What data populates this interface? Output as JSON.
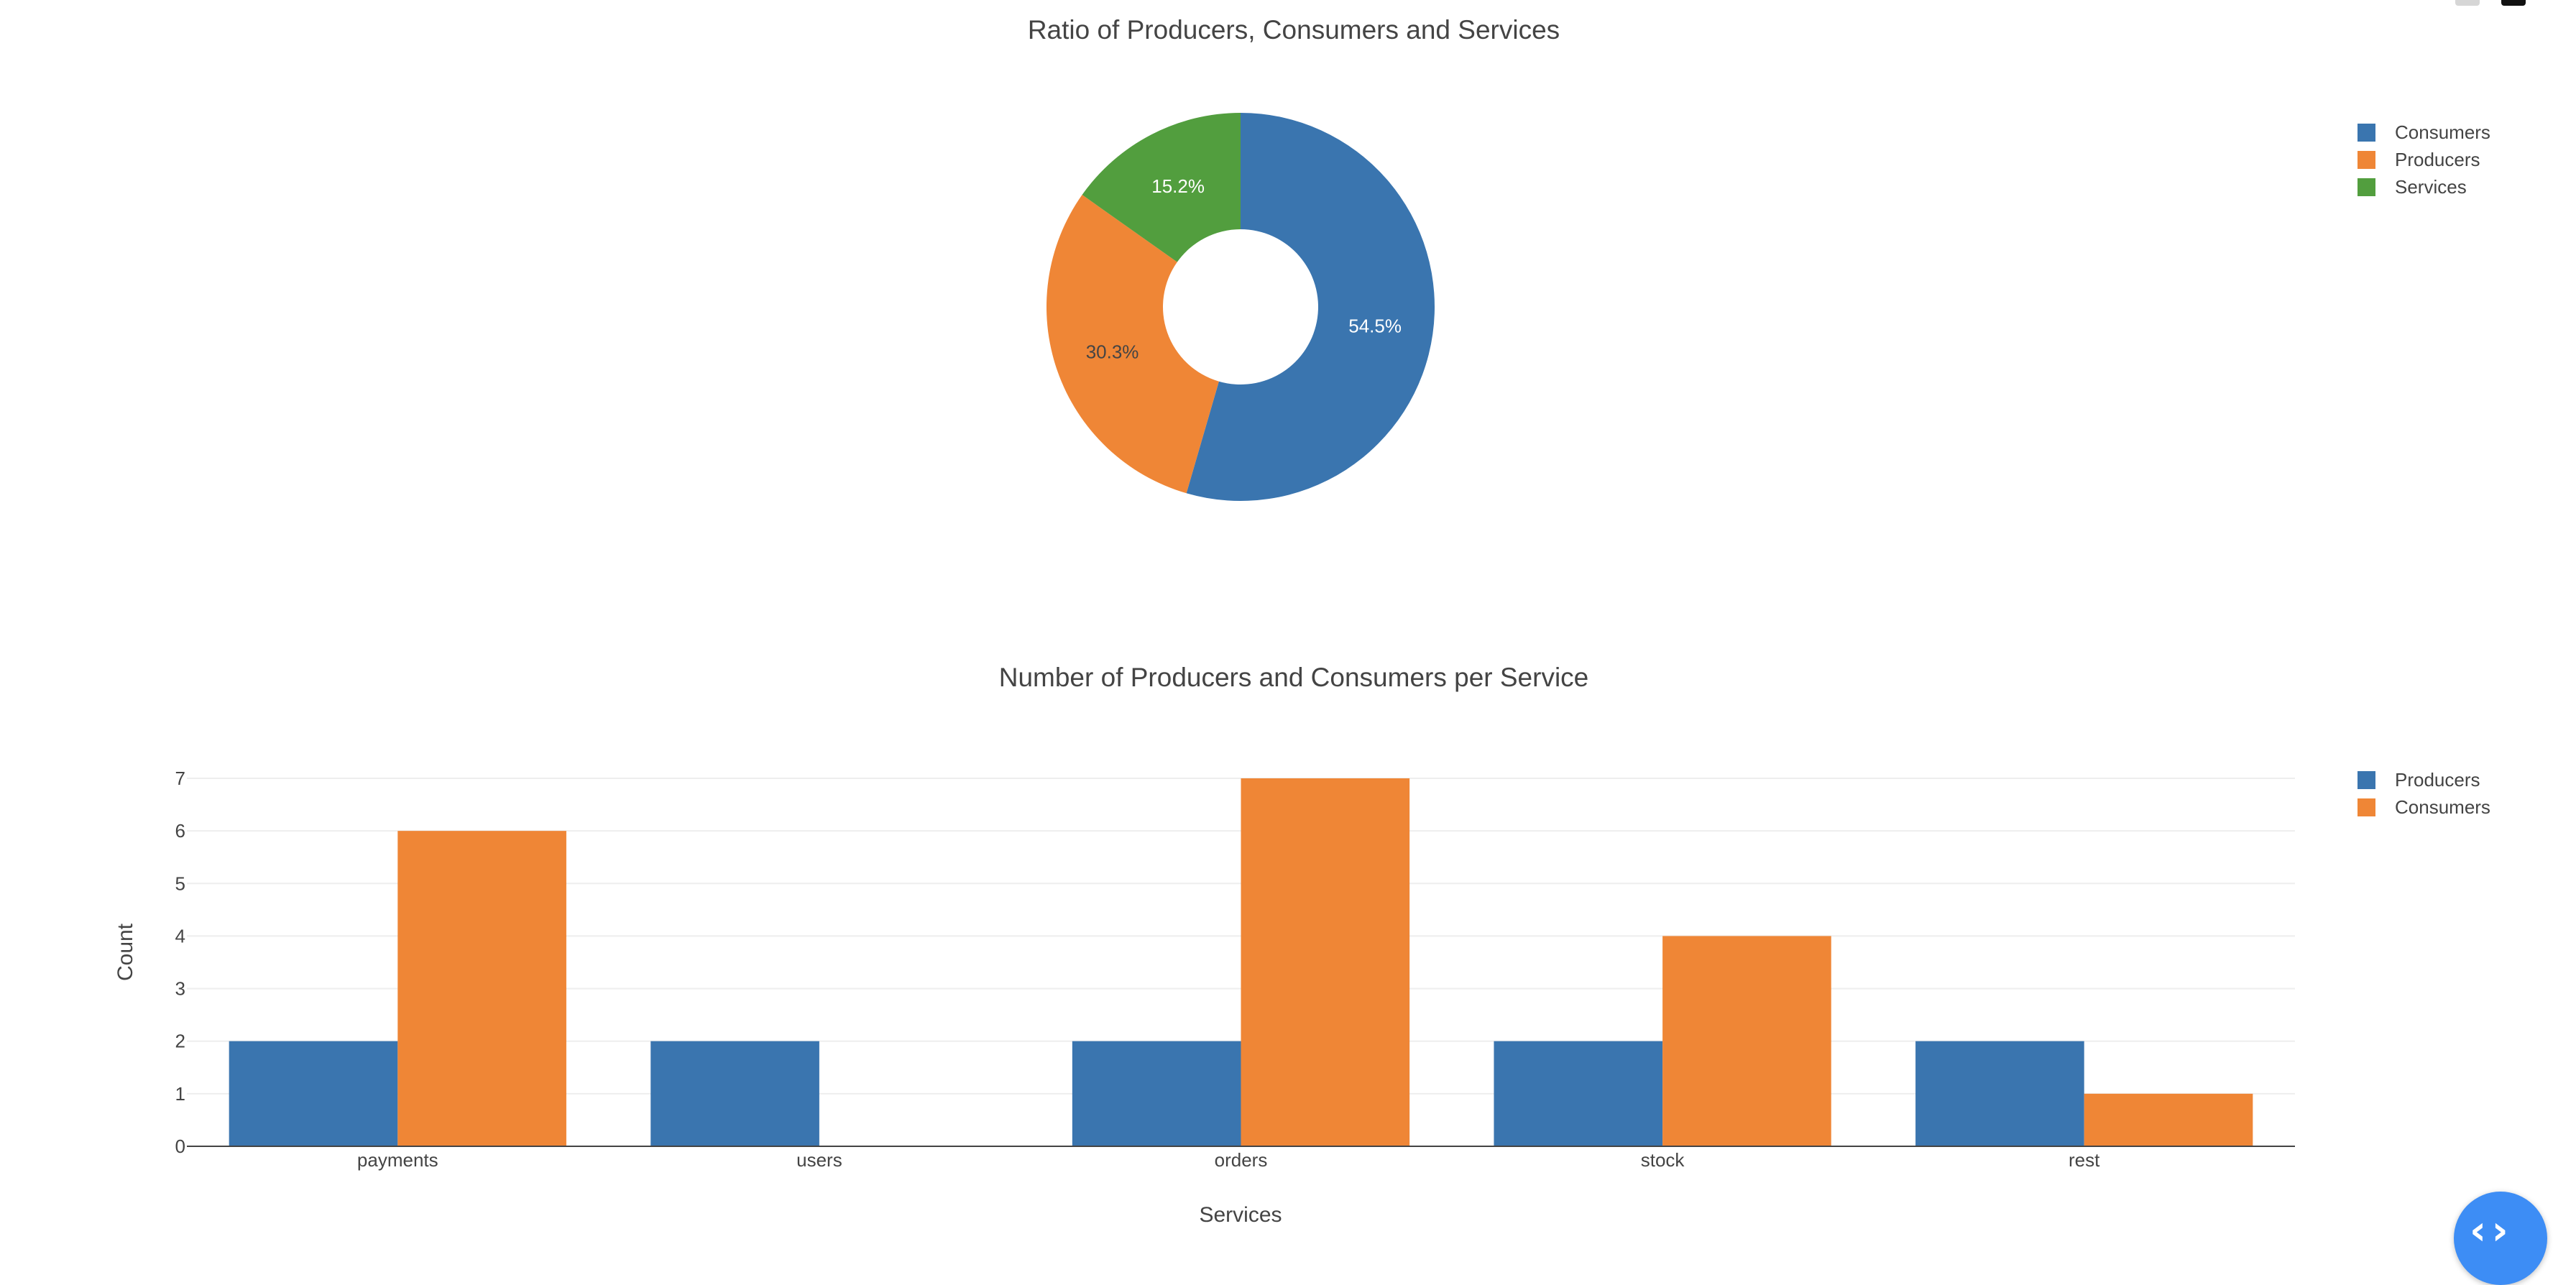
{
  "toolbar": {
    "icons": [
      "zoom-icon",
      "bar-chart-icon"
    ],
    "colors": [
      "#d6d6d6",
      "#111111"
    ]
  },
  "fab": {
    "glyph": "‹ ›",
    "icon": "code-icon",
    "color": "#3d8df5"
  },
  "chart_data": [
    {
      "type": "pie",
      "title": "Ratio of Producers, Consumers and Services",
      "hole": true,
      "labels": [
        "Consumers",
        "Producers",
        "Services"
      ],
      "values": [
        54.5,
        30.3,
        15.2
      ],
      "value_labels": [
        "54.5%",
        "30.3%",
        "15.2%"
      ],
      "colors": [
        "#3a75af",
        "#ef8636",
        "#529e3e"
      ],
      "legend": {
        "position": "top-right",
        "entries": [
          "Consumers",
          "Producers",
          "Services"
        ]
      }
    },
    {
      "type": "bar",
      "title": "Number of Producers and Consumers per Service",
      "categories": [
        "payments",
        "users",
        "orders",
        "stock",
        "rest"
      ],
      "series": [
        {
          "name": "Producers",
          "values": [
            2,
            2,
            2,
            2,
            2
          ],
          "color": "#3a75af"
        },
        {
          "name": "Consumers",
          "values": [
            6,
            0,
            7,
            4,
            1
          ],
          "color": "#ef8636"
        }
      ],
      "xlabel": "Services",
      "ylabel": "Count",
      "ylim": [
        0,
        7
      ],
      "yticks": [
        "0",
        "1",
        "2",
        "3",
        "4",
        "5",
        "6",
        "7"
      ],
      "grid": true,
      "legend": {
        "position": "top-right",
        "entries": [
          "Producers",
          "Consumers"
        ]
      }
    }
  ]
}
